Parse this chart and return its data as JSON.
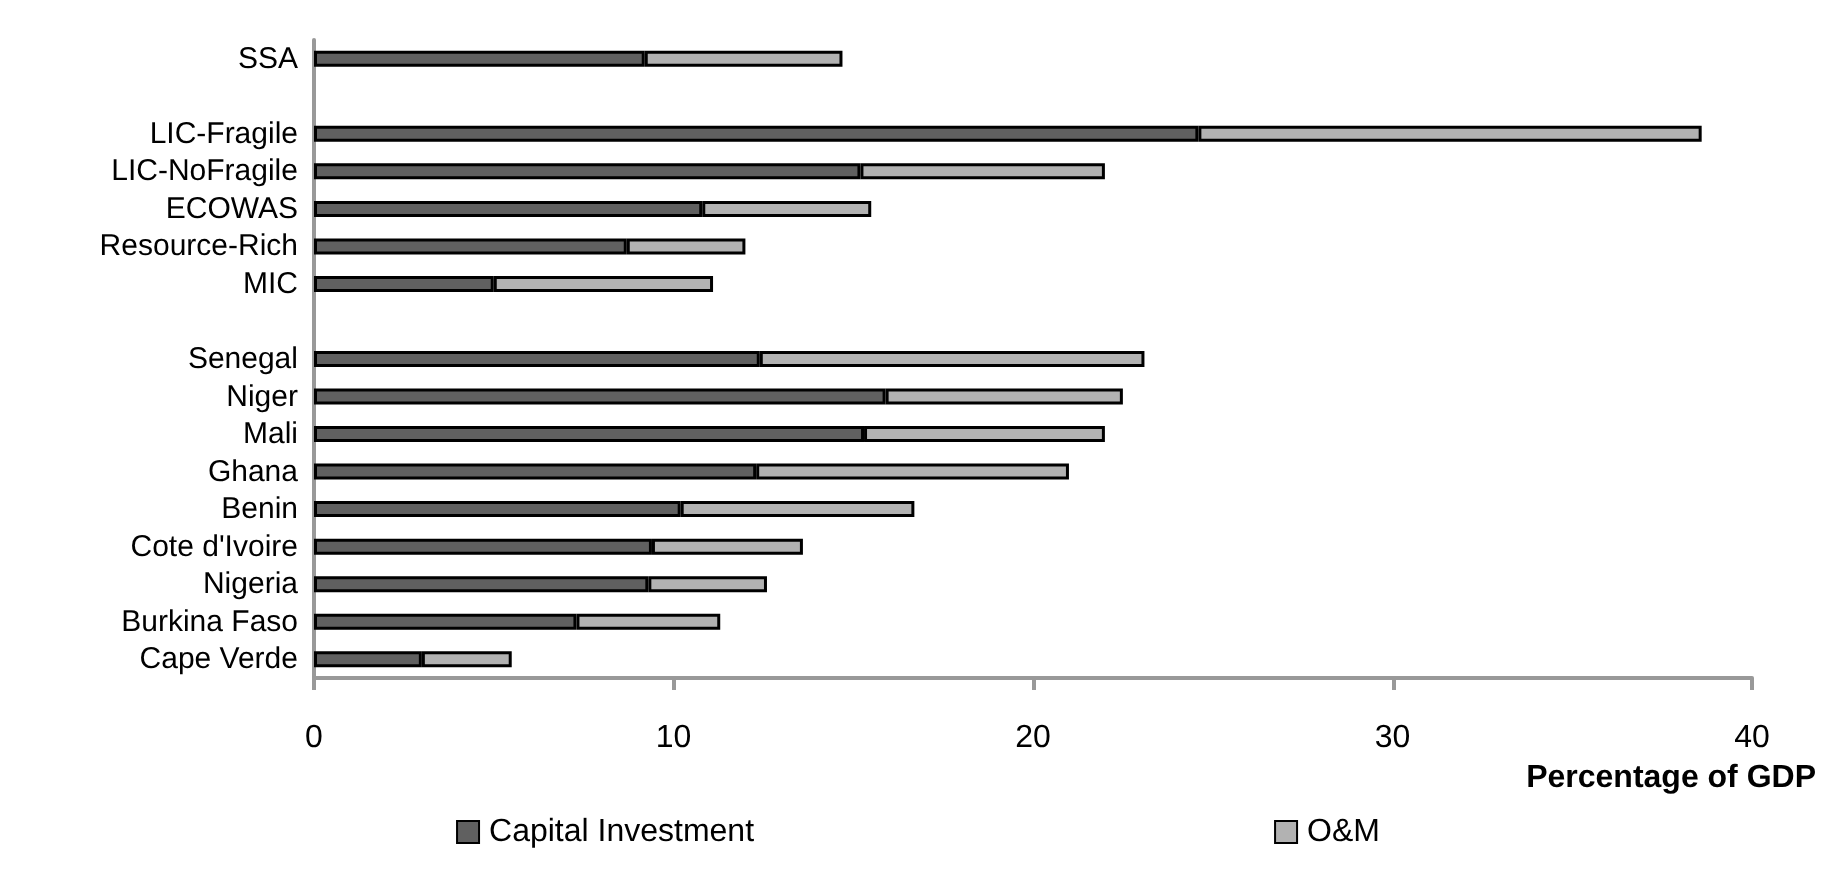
{
  "chart_data": {
    "type": "bar",
    "orientation": "horizontal",
    "stacked": true,
    "xlabel": "Percentage of GDP",
    "categories": [
      "SSA",
      null,
      "LIC-Fragile",
      "LIC-NoFragile",
      "ECOWAS",
      "Resource-Rich",
      "MIC",
      null,
      "Senegal",
      "Niger",
      "Mali",
      "Ghana",
      "Benin",
      "Cote d'Ivoire",
      "Nigeria",
      "Burkina Faso",
      "Cape Verde"
    ],
    "series": [
      {
        "name": "Capital Investment",
        "color": "#606060",
        "values": [
          9.2,
          null,
          24.6,
          15.2,
          10.8,
          8.7,
          5.0,
          null,
          12.4,
          15.9,
          15.3,
          12.3,
          10.2,
          9.4,
          9.3,
          7.3,
          3.0
        ]
      },
      {
        "name": "O&M",
        "color": "#b2b2b2",
        "values": [
          5.5,
          null,
          14.0,
          6.8,
          4.7,
          3.3,
          6.1,
          null,
          10.7,
          6.6,
          6.7,
          8.7,
          6.5,
          4.2,
          3.3,
          4.0,
          2.5
        ]
      }
    ],
    "xlim": [
      0,
      40
    ],
    "xticks": [
      0,
      10,
      20,
      30,
      40
    ],
    "grid": false,
    "legend": "bottom"
  }
}
